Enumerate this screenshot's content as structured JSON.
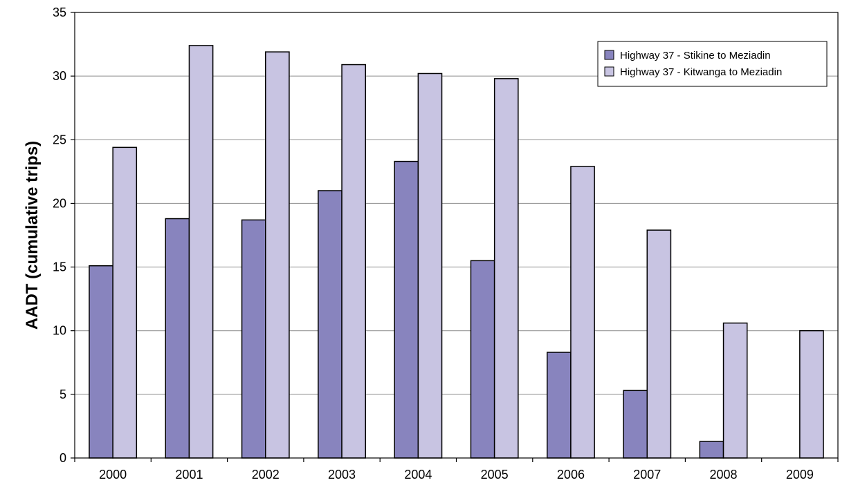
{
  "chart_data": {
    "type": "bar",
    "title": "",
    "xlabel": "",
    "ylabel": "AADT (cumulative trips)",
    "categories": [
      "2000",
      "2001",
      "2002",
      "2003",
      "2004",
      "2005",
      "2006",
      "2007",
      "2008",
      "2009"
    ],
    "series": [
      {
        "name": "Highway 37 - Stikine to Meziadin",
        "color": "#8884be",
        "values": [
          15.1,
          18.8,
          18.7,
          21.0,
          23.3,
          15.5,
          8.3,
          5.3,
          1.3,
          null
        ]
      },
      {
        "name": "Highway 37 - Kitwanga to Meziadin",
        "color": "#c8c4e2",
        "values": [
          24.4,
          32.4,
          31.9,
          30.9,
          30.2,
          29.8,
          22.9,
          17.9,
          10.6,
          10.0
        ]
      }
    ],
    "ylim": [
      0,
      35
    ],
    "yticks": [
      0,
      5,
      10,
      15,
      20,
      25,
      30,
      35
    ],
    "grid": true,
    "legend_position": "top-right"
  }
}
